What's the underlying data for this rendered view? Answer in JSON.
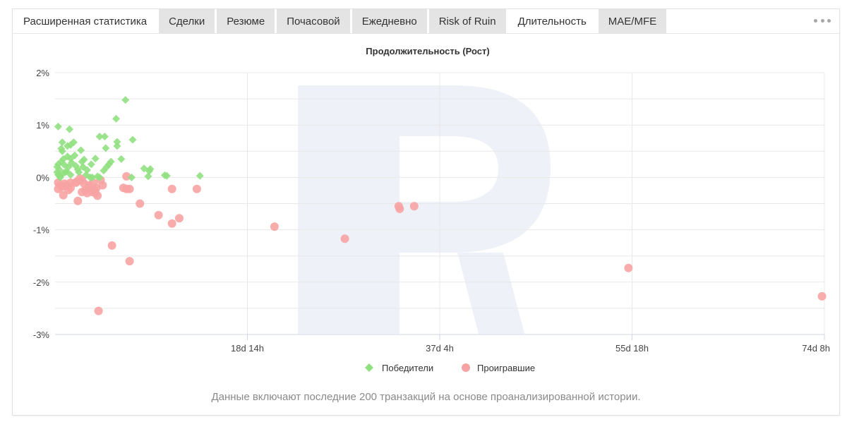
{
  "tabs": [
    {
      "label": "Расширенная статистика",
      "active": false
    },
    {
      "label": "Сделки",
      "active": false
    },
    {
      "label": "Резюме",
      "active": false
    },
    {
      "label": "Почасовой",
      "active": false
    },
    {
      "label": "Ежедневно",
      "active": false
    },
    {
      "label": "Risk of Ruin",
      "active": false
    },
    {
      "label": "Длительность",
      "active": true
    },
    {
      "label": "MAE/MFE",
      "active": false
    }
  ],
  "more_icon": "more-horizontal-icon",
  "footer_note": "Данные включают последние 200 транзакций на основе проанализированной истории.",
  "colors": {
    "winners": "#90e080",
    "losers": "#f7a3a3",
    "grid": "#e8e8e8",
    "watermark": "#eef1f7"
  },
  "chart_data": {
    "type": "scatter",
    "title": "Продолжительность (Рост)",
    "xlabel": "",
    "ylabel": "",
    "xunit": "days",
    "xlim": [
      0,
      74.3333
    ],
    "ylim": [
      -3,
      2
    ],
    "x_ticks": [
      {
        "value": 18.5833,
        "label": "18d 14h"
      },
      {
        "value": 37.1667,
        "label": "37d 4h"
      },
      {
        "value": 55.75,
        "label": "55d 18h"
      },
      {
        "value": 74.3333,
        "label": "74d 8h"
      }
    ],
    "y_ticks": [
      {
        "value": 2,
        "label": "2%"
      },
      {
        "value": 1,
        "label": "1%"
      },
      {
        "value": 0,
        "label": "0%"
      },
      {
        "value": -1,
        "label": "-1%"
      },
      {
        "value": -2,
        "label": "-2%"
      },
      {
        "value": -3,
        "label": "-3%"
      }
    ],
    "grid": true,
    "legend_position": "bottom-center",
    "series": [
      {
        "name": "Победители",
        "marker": "diamond",
        "points": [
          [
            0.3,
            0.97
          ],
          [
            0.7,
            0.5
          ],
          [
            0.7,
            0.67
          ],
          [
            1.4,
            0.92
          ],
          [
            1.5,
            0.62
          ],
          [
            1.8,
            0.67
          ],
          [
            2.5,
            0.52
          ],
          [
            1.9,
            0.42
          ],
          [
            1.5,
            0.36
          ],
          [
            1.2,
            0.4
          ],
          [
            0.6,
            0.3
          ],
          [
            0.3,
            0.25
          ],
          [
            0.2,
            0.2
          ],
          [
            0.4,
            0.15
          ],
          [
            0.2,
            0.1
          ],
          [
            0.3,
            0.05
          ],
          [
            0.5,
            0.02
          ],
          [
            0.8,
            0.08
          ],
          [
            1.1,
            0.12
          ],
          [
            1.3,
            0.2
          ],
          [
            0.9,
            0.24
          ],
          [
            1.6,
            0.28
          ],
          [
            2.0,
            0.22
          ],
          [
            2.3,
            0.1
          ],
          [
            2.7,
            0.2
          ],
          [
            3.1,
            0.14
          ],
          [
            3.5,
            0.25
          ],
          [
            2.8,
            0.34
          ],
          [
            3.9,
            0.36
          ],
          [
            3.0,
            0.05
          ],
          [
            3.6,
            0.0
          ],
          [
            4.1,
            0.02
          ],
          [
            4.7,
            0.13
          ],
          [
            5.2,
            0.25
          ],
          [
            5.4,
            0.3
          ],
          [
            5.0,
            0.2
          ],
          [
            4.3,
            0.0
          ],
          [
            4.3,
            0.78
          ],
          [
            4.8,
            0.78
          ],
          [
            4.9,
            0.56
          ],
          [
            6.0,
            0.68
          ],
          [
            6.0,
            0.6
          ],
          [
            6.4,
            0.35
          ],
          [
            5.9,
            1.12
          ],
          [
            6.8,
            1.48
          ],
          [
            7.5,
            0.72
          ],
          [
            7.4,
            0.0
          ],
          [
            8.6,
            0.17
          ],
          [
            9.1,
            0.12
          ],
          [
            9.2,
            0.16
          ],
          [
            9.0,
            0.02
          ],
          [
            10.6,
            0.04
          ],
          [
            10.8,
            0.03
          ],
          [
            14.0,
            0.03
          ],
          [
            0.5,
            0.0
          ],
          [
            0.8,
            0.35
          ],
          [
            1.0,
            0.1
          ],
          [
            1.5,
            0.05
          ],
          [
            2.2,
            0.15
          ],
          [
            0.6,
            0.55
          ],
          [
            1.2,
            0.6
          ],
          [
            3.4,
            0.0
          ],
          [
            2.6,
            0.3
          ]
        ]
      },
      {
        "name": "Проигравшие",
        "marker": "circle",
        "points": [
          [
            0.3,
            -0.1
          ],
          [
            0.5,
            -0.15
          ],
          [
            0.3,
            -0.22
          ],
          [
            0.6,
            -0.18
          ],
          [
            0.9,
            -0.12
          ],
          [
            0.8,
            -0.34
          ],
          [
            1.2,
            -0.15
          ],
          [
            1.5,
            -0.1
          ],
          [
            1.5,
            -0.2
          ],
          [
            2.1,
            -0.08
          ],
          [
            2.0,
            -0.1
          ],
          [
            2.2,
            -0.45
          ],
          [
            2.6,
            -0.05
          ],
          [
            2.8,
            -0.12
          ],
          [
            2.9,
            -0.25
          ],
          [
            2.6,
            -0.28
          ],
          [
            3.1,
            -0.3
          ],
          [
            3.3,
            -0.15
          ],
          [
            3.3,
            -0.2
          ],
          [
            3.7,
            -0.1
          ],
          [
            3.8,
            -0.25
          ],
          [
            4.0,
            -0.2
          ],
          [
            3.9,
            -0.3
          ],
          [
            3.6,
            -0.28
          ],
          [
            4.1,
            -0.35
          ],
          [
            4.4,
            -0.05
          ],
          [
            4.6,
            -0.15
          ],
          [
            4.2,
            -2.55
          ],
          [
            5.5,
            -1.3
          ],
          [
            6.6,
            -0.2
          ],
          [
            6.9,
            -0.22
          ],
          [
            7.2,
            -0.22
          ],
          [
            6.9,
            0.02
          ],
          [
            7.2,
            -1.6
          ],
          [
            8.2,
            -0.5
          ],
          [
            10.0,
            -0.72
          ],
          [
            11.3,
            -0.22
          ],
          [
            11.3,
            -0.88
          ],
          [
            12.0,
            -0.78
          ],
          [
            13.7,
            -0.22
          ],
          [
            21.2,
            -0.94
          ],
          [
            28.0,
            -1.17
          ],
          [
            33.2,
            -0.55
          ],
          [
            33.3,
            -0.6
          ],
          [
            34.7,
            -0.55
          ],
          [
            55.4,
            -1.73
          ],
          [
            74.1,
            -2.27
          ],
          [
            0.9,
            -0.17
          ],
          [
            1.3,
            -0.24
          ],
          [
            2.4,
            -0.02
          ]
        ]
      }
    ]
  }
}
